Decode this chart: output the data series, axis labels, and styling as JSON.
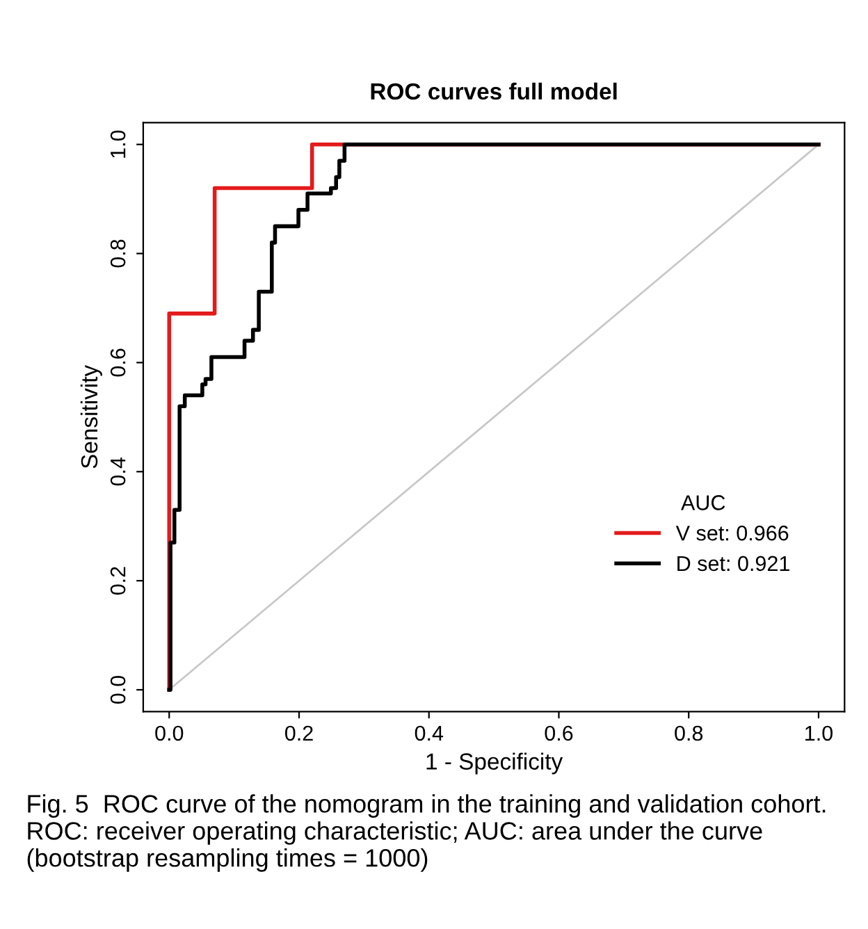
{
  "chart_data": {
    "type": "line",
    "title": "ROC curves full model",
    "xlabel": "1 - Specificity",
    "ylabel": "Sensitivity",
    "legend_title": "AUC",
    "xlim": [
      -0.04,
      1.04
    ],
    "ylim": [
      -0.04,
      1.04
    ],
    "xticks": [
      {
        "value": 0,
        "label": "0.0"
      },
      0.2,
      0.4,
      0.6,
      0.8,
      {
        "value": 1,
        "label": "1.0"
      }
    ],
    "yticks": [
      {
        "value": 0,
        "label": "0.0"
      },
      0.2,
      0.4,
      0.6,
      0.8,
      {
        "value": 1,
        "label": "1.0"
      }
    ],
    "grid": false,
    "legend": "right",
    "marker": "none",
    "line_style": "solid",
    "series": [
      {
        "color": "#c8c8c8",
        "x": [
          0,
          1
        ],
        "values": [
          0,
          1
        ]
      },
      {
        "name": "V set: 0.966",
        "color": "#e41a1c",
        "x": [
          0,
          0,
          0.07,
          0.07,
          0.22,
          0.22,
          1
        ],
        "values": [
          0,
          0.69,
          0.69,
          0.92,
          0.92,
          1,
          1
        ]
      },
      {
        "name": "D set: 0.921",
        "color": "#000000",
        "x": [
          0,
          0.002,
          0.002,
          0.008,
          0.008,
          0.016,
          0.016,
          0.024,
          0.024,
          0.051,
          0.051,
          0.056,
          0.056,
          0.065,
          0.065,
          0.116,
          0.116,
          0.129,
          0.129,
          0.138,
          0.138,
          0.158,
          0.158,
          0.163,
          0.163,
          0.199,
          0.199,
          0.213,
          0.213,
          0.249,
          0.249,
          0.257,
          0.257,
          0.262,
          0.262,
          0.27,
          0.27,
          1
        ],
        "values": [
          0,
          0,
          0.27,
          0.27,
          0.33,
          0.33,
          0.52,
          0.52,
          0.54,
          0.54,
          0.56,
          0.56,
          0.57,
          0.57,
          0.61,
          0.61,
          0.64,
          0.64,
          0.66,
          0.66,
          0.73,
          0.73,
          0.82,
          0.82,
          0.85,
          0.85,
          0.88,
          0.88,
          0.91,
          0.91,
          0.92,
          0.92,
          0.94,
          0.94,
          0.97,
          0.97,
          1,
          1
        ]
      }
    ],
    "annotations": [
      "Fig. 5  ROC curve of the nomogram in the training and validation cohort. ROC: receiver operating characteristic; AUC: area under the curve (bootstrap resampling times = 1000)"
    ]
  }
}
